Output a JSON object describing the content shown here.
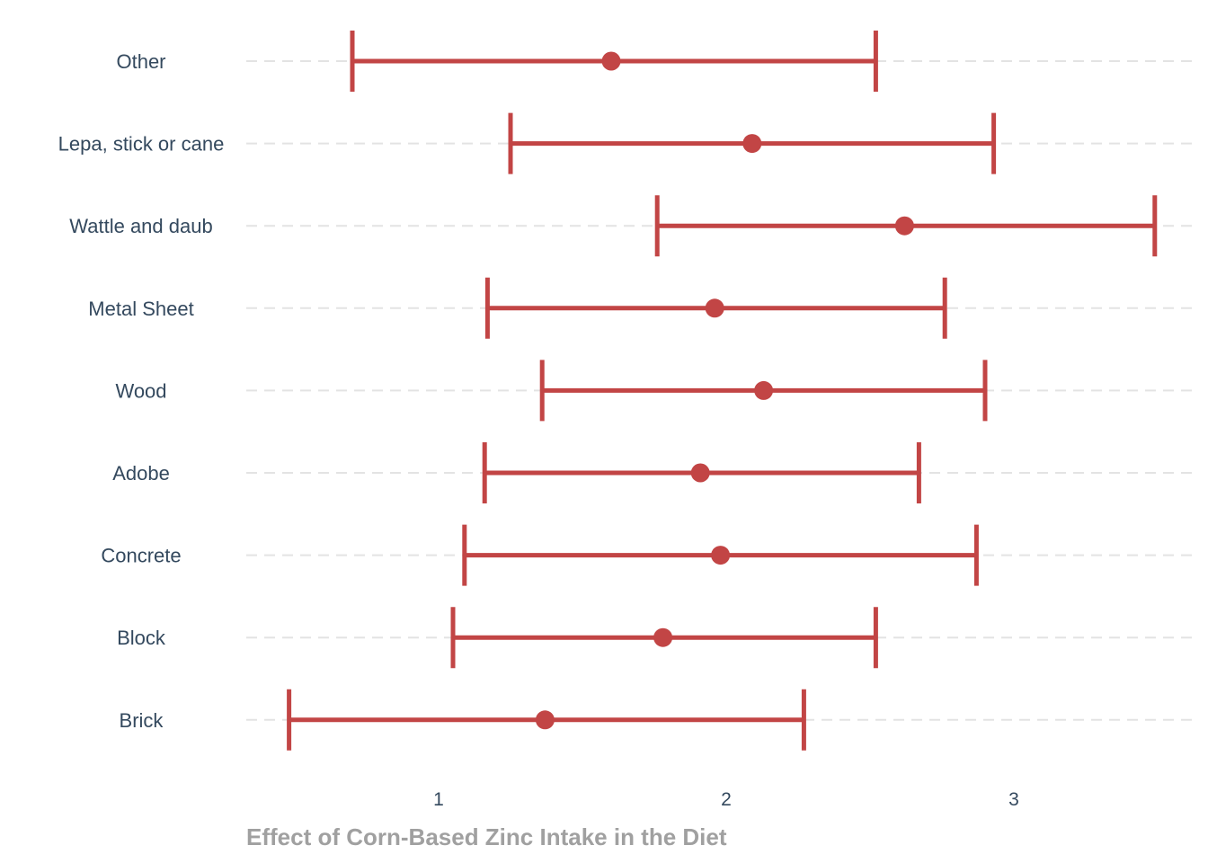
{
  "chart_data": {
    "type": "errorbar",
    "title": "",
    "xlabel": "Effect of Corn-Based Zinc Intake in the Diet",
    "ylabel": "",
    "xlim": [
      0.33,
      3.62
    ],
    "xticks": [
      1,
      2,
      3
    ],
    "grid": "horizontal-dashed",
    "color": "#c24545",
    "categories": [
      "Brick",
      "Block",
      "Concrete",
      "Adobe",
      "Wood",
      "Metal Sheet",
      "Wattle and daub",
      "Lepa, stick or cane",
      "Other"
    ],
    "estimates": [
      1.37,
      1.78,
      1.98,
      1.91,
      2.13,
      1.96,
      2.62,
      2.09,
      1.6
    ],
    "lower": [
      0.48,
      1.05,
      1.09,
      1.16,
      1.36,
      1.17,
      1.76,
      1.25,
      0.7
    ],
    "upper": [
      2.27,
      2.52,
      2.87,
      2.67,
      2.9,
      2.76,
      3.49,
      2.93,
      2.52
    ]
  }
}
